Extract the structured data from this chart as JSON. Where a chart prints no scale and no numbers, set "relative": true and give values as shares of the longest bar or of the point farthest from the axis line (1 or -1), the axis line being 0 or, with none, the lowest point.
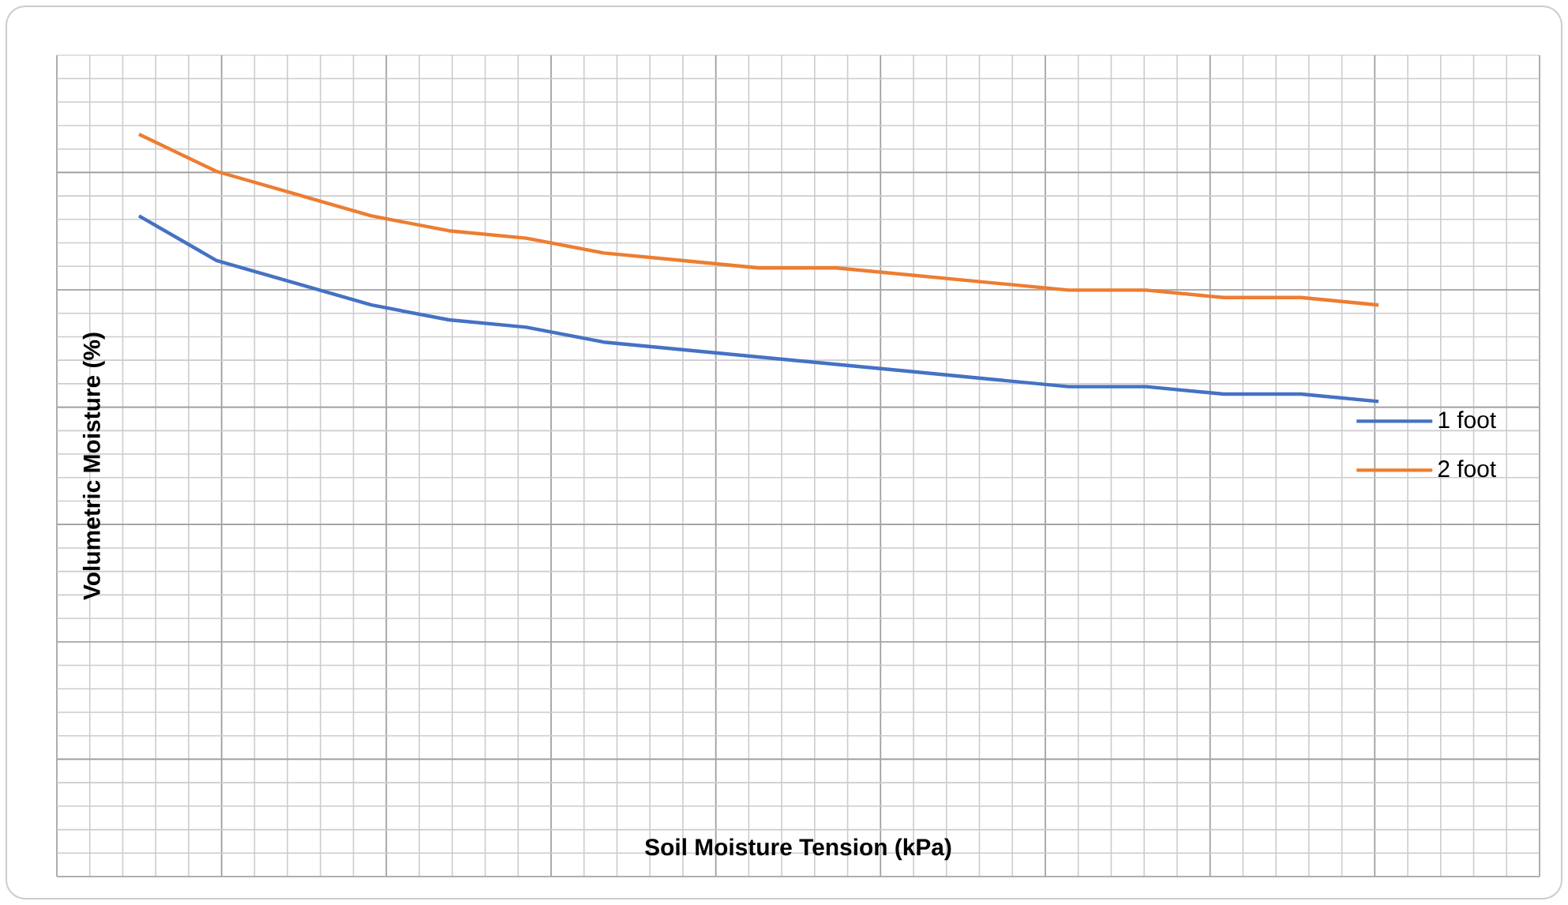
{
  "chart_data": {
    "type": "line",
    "relative": true,
    "xlabel": "Soil  Moisture Tension (kPa)",
    "ylabel": "Volumetric Moisture (%)",
    "categories": [
      null,
      null,
      null,
      null,
      null,
      null,
      null,
      null,
      null,
      null,
      null,
      null,
      null,
      null,
      null,
      null,
      null
    ],
    "series": [
      {
        "name": "1 foot",
        "color": "#4472c4",
        "values": [
          0.89,
          0.83,
          0.8,
          0.77,
          0.75,
          0.74,
          0.72,
          0.71,
          0.7,
          0.69,
          0.68,
          0.67,
          0.66,
          0.66,
          0.65,
          0.65,
          0.64
        ]
      },
      {
        "name": "2 foot",
        "color": "#ed7d31",
        "values": [
          1.0,
          0.95,
          0.92,
          0.89,
          0.87,
          0.86,
          0.84,
          0.83,
          0.82,
          0.82,
          0.81,
          0.8,
          0.79,
          0.79,
          0.78,
          0.78,
          0.77
        ]
      }
    ],
    "grid": true,
    "legend": "right",
    "marker": "none",
    "line_style": "solid"
  }
}
